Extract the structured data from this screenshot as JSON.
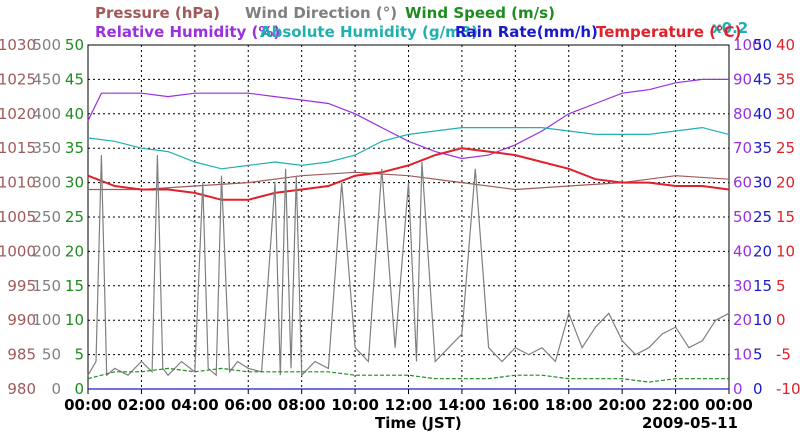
{
  "chart_data": {
    "type": "line",
    "date": "2009-05-11",
    "xlabel": "Time (JST)",
    "x_ticks": [
      "00:00",
      "02:00",
      "04:00",
      "06:00",
      "08:00",
      "10:00",
      "12:00",
      "14:00",
      "16:00",
      "18:00",
      "20:00",
      "22:00",
      "00:00"
    ],
    "grid": true,
    "axes": [
      {
        "id": "pressure",
        "label": "Pressure (hPa)",
        "side": "left",
        "color": "#a05a5a",
        "ticks": [
          980,
          985,
          990,
          995,
          1000,
          1005,
          1010,
          1015,
          1020,
          1025,
          1030
        ],
        "range": [
          980,
          1030
        ]
      },
      {
        "id": "wind_dir",
        "label": "Wind Direction (°)",
        "side": "left",
        "color": "#7f7f7f",
        "ticks": [
          0,
          50,
          100,
          150,
          200,
          250,
          300,
          350,
          400,
          450,
          500
        ],
        "range": [
          0,
          500
        ]
      },
      {
        "id": "wind_speed",
        "label": "Wind Speed (m/s)",
        "side": "left",
        "color": "#1e8c1e",
        "ticks": [
          0,
          5,
          10,
          15,
          20,
          25,
          30,
          35,
          40,
          45,
          50
        ],
        "range": [
          0,
          50
        ]
      },
      {
        "id": "rh",
        "label": "Relative Humidity (%)",
        "side": "right",
        "color": "#9a30e0",
        "ticks": [
          0,
          10,
          20,
          30,
          40,
          50,
          60,
          70,
          80,
          90,
          100
        ],
        "range": [
          0,
          100
        ]
      },
      {
        "id": "ah",
        "label": "Absolute Humidity (g/m3)",
        "label_suffix": "x0.2",
        "side": "right",
        "color": "#20b0b0",
        "ticks": [],
        "range": [
          0,
          100
        ]
      },
      {
        "id": "rain",
        "label": "Rain Rate(mm/h)",
        "side": "right",
        "color": "#1a1acc",
        "ticks": [
          0,
          5,
          10,
          15,
          20,
          25,
          30,
          35,
          40,
          45,
          50
        ],
        "range": [
          0,
          50
        ]
      },
      {
        "id": "temp",
        "label": "Temperature (°C)",
        "side": "right",
        "color": "#e0202a",
        "ticks": [
          -10,
          -5,
          0,
          5,
          10,
          15,
          20,
          25,
          30,
          35,
          40
        ],
        "range": [
          -10,
          40
        ]
      }
    ],
    "series": [
      {
        "name": "Relative Humidity (%)",
        "axis": "rh",
        "color": "#9a30e0",
        "x": [
          0,
          0.5,
          1,
          2,
          3,
          4,
          5,
          6,
          7,
          8,
          9,
          10,
          11,
          12,
          13,
          14,
          15,
          16,
          17,
          18,
          19,
          20,
          21,
          22,
          23,
          24
        ],
        "y": [
          78,
          86,
          86,
          86,
          85,
          86,
          86,
          86,
          85,
          84,
          83,
          80,
          76,
          72,
          69,
          67,
          68,
          71,
          75,
          80,
          83,
          86,
          87,
          89,
          90,
          90
        ]
      },
      {
        "name": "Absolute Humidity (g/m3)",
        "axis": "ah",
        "color": "#20b0b0",
        "x": [
          0,
          1,
          2,
          3,
          4,
          5,
          6,
          7,
          8,
          9,
          10,
          11,
          12,
          13,
          14,
          15,
          16,
          17,
          18,
          19,
          20,
          21,
          22,
          23,
          24
        ],
        "y": [
          73,
          72,
          70,
          69,
          66,
          64,
          65,
          66,
          65,
          66,
          68,
          72,
          74,
          75,
          76,
          76,
          76,
          76,
          75,
          74,
          74,
          74,
          75,
          76,
          74
        ]
      },
      {
        "name": "Pressure (hPa)",
        "axis": "pressure",
        "color": "#a05a5a",
        "x": [
          0,
          2,
          4,
          6,
          8,
          10,
          12,
          14,
          16,
          18,
          20,
          22,
          24
        ],
        "y": [
          1009,
          1009,
          1009.5,
          1010,
          1011,
          1011.5,
          1011,
          1010,
          1009,
          1009.5,
          1010,
          1011,
          1010.5
        ]
      },
      {
        "name": "Temperature (°C)",
        "axis": "temp",
        "color": "#e0202a",
        "x": [
          0,
          1,
          2,
          3,
          4,
          5,
          6,
          7,
          8,
          9,
          10,
          11,
          12,
          13,
          14,
          15,
          16,
          17,
          18,
          19,
          20,
          21,
          22,
          23,
          24
        ],
        "y": [
          21,
          19.5,
          19,
          19,
          18.5,
          17.5,
          17.5,
          18.5,
          19,
          19.5,
          21,
          21.5,
          22.5,
          24,
          25,
          24.5,
          24,
          23,
          22,
          20.5,
          20,
          20,
          19.5,
          19.5,
          19
        ]
      },
      {
        "name": "Wind Direction (°)",
        "axis": "wind_dir",
        "color": "#7f7f7f",
        "x": [
          0,
          0.3,
          0.5,
          0.7,
          1,
          1.5,
          2,
          2.4,
          2.6,
          2.8,
          3,
          3.5,
          4,
          4.3,
          4.5,
          4.8,
          5,
          5.3,
          5.6,
          6,
          6.5,
          7,
          7.2,
          7.4,
          7.6,
          7.8,
          8,
          8.5,
          9,
          9.5,
          10,
          10.5,
          11,
          11.5,
          12,
          12.3,
          12.5,
          13,
          13.5,
          14,
          14.5,
          15,
          15.5,
          16,
          16.5,
          17,
          17.5,
          18,
          18.5,
          19,
          19.5,
          20,
          20.5,
          21,
          21.5,
          22,
          22.5,
          23,
          23.5,
          24
        ],
        "y": [
          20,
          40,
          340,
          20,
          30,
          20,
          40,
          25,
          340,
          30,
          20,
          40,
          25,
          300,
          30,
          20,
          310,
          25,
          40,
          30,
          25,
          300,
          20,
          320,
          30,
          310,
          20,
          40,
          30,
          300,
          60,
          40,
          320,
          60,
          300,
          40,
          330,
          40,
          60,
          80,
          320,
          60,
          40,
          60,
          50,
          60,
          40,
          110,
          60,
          90,
          110,
          70,
          50,
          60,
          80,
          90,
          60,
          70,
          100,
          110
        ]
      },
      {
        "name": "Wind Speed (m/s)",
        "axis": "wind_speed",
        "color": "#1e8c1e",
        "x": [
          0,
          1,
          2,
          3,
          4,
          5,
          6,
          7,
          8,
          9,
          10,
          11,
          12,
          13,
          14,
          15,
          16,
          17,
          18,
          19,
          20,
          21,
          22,
          23,
          24
        ],
        "y": [
          1.5,
          2.5,
          2.5,
          3,
          2.5,
          3,
          2.5,
          2.5,
          2.5,
          2.5,
          2,
          2,
          2,
          1.5,
          1.5,
          1.5,
          2,
          2,
          1.5,
          1.5,
          1.5,
          1,
          1.5,
          1.5,
          1.5
        ]
      },
      {
        "name": "Rain Rate(mm/h)",
        "axis": "rain",
        "color": "#1a1acc",
        "x": [
          0,
          24
        ],
        "y": [
          0,
          0
        ]
      }
    ]
  }
}
